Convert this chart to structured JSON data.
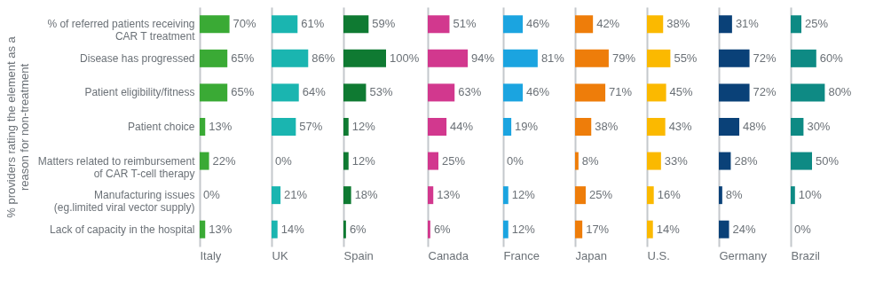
{
  "chart_data": [
    {
      "type": "bar",
      "orientation": "horizontal",
      "ylabel": "% providers rating the element as a reason for non-treatment",
      "xlabel": "Italy",
      "categories": [
        "% of referred patients receiving CAR T treatment",
        "Disease has progressed",
        "Patient eligibility/fitness",
        "Patient choice",
        "Matters related to reimbursement of CAR T-cell therapy",
        "Manufacturing issues (eg.limited viral vector supply)",
        "Lack of capacity in the hospital"
      ],
      "tick_labels": "y",
      "grid": false,
      "color": "#3aaa35",
      "values": [
        70,
        65,
        65,
        13,
        22,
        0,
        13
      ],
      "value_labels": [
        "70%",
        "65%",
        "65%",
        "13%",
        "22%",
        "0%",
        "13%"
      ]
    },
    {
      "type": "bar",
      "orientation": "horizontal",
      "xlabel": "UK",
      "tick_labels": false,
      "grid": false,
      "color": "#1ab5b0",
      "values": [
        61,
        86,
        64,
        57,
        0,
        21,
        14
      ],
      "value_labels": [
        "61%",
        "86%",
        "64%",
        "57%",
        "0%",
        "21%",
        "14%"
      ]
    },
    {
      "type": "bar",
      "orientation": "horizontal",
      "xlabel": "Spain",
      "tick_labels": false,
      "grid": false,
      "color": "#0f7a32",
      "values": [
        59,
        100,
        53,
        12,
        12,
        18,
        6
      ],
      "value_labels": [
        "59%",
        "100%",
        "53%",
        "12%",
        "12%",
        "18%",
        "6%"
      ]
    },
    {
      "type": "bar",
      "orientation": "horizontal",
      "xlabel": "Canada",
      "tick_labels": false,
      "grid": false,
      "color": "#d2388e",
      "values": [
        51,
        94,
        63,
        44,
        25,
        13,
        6
      ],
      "value_labels": [
        "51%",
        "94%",
        "63%",
        "44%",
        "25%",
        "13%",
        "6%"
      ]
    },
    {
      "type": "bar",
      "orientation": "horizontal",
      "xlabel": "France",
      "tick_labels": false,
      "grid": false,
      "color": "#1ba4e0",
      "values": [
        46,
        81,
        46,
        19,
        0,
        12,
        12
      ],
      "value_labels": [
        "46%",
        "81%",
        "46%",
        "19%",
        "0%",
        "12%",
        "12%"
      ]
    },
    {
      "type": "bar",
      "orientation": "horizontal",
      "xlabel": "Japan",
      "tick_labels": false,
      "grid": false,
      "color": "#ee7d0a",
      "values": [
        42,
        79,
        71,
        38,
        8,
        25,
        17
      ],
      "value_labels": [
        "42%",
        "79%",
        "71%",
        "38%",
        "8%",
        "25%",
        "17%"
      ]
    },
    {
      "type": "bar",
      "orientation": "horizontal",
      "xlabel": "U.S.",
      "tick_labels": false,
      "grid": false,
      "color": "#fbb900",
      "values": [
        38,
        55,
        45,
        43,
        33,
        16,
        14
      ],
      "value_labels": [
        "38%",
        "55%",
        "45%",
        "43%",
        "33%",
        "16%",
        "14%"
      ]
    },
    {
      "type": "bar",
      "orientation": "horizontal",
      "xlabel": "Germany",
      "tick_labels": false,
      "grid": false,
      "color": "#0a4178",
      "values": [
        31,
        72,
        72,
        48,
        28,
        8,
        24
      ],
      "value_labels": [
        "31%",
        "72%",
        "72%",
        "48%",
        "28%",
        "8%",
        "24%"
      ]
    },
    {
      "type": "bar",
      "orientation": "horizontal",
      "xlabel": "Brazil",
      "tick_labels": false,
      "grid": false,
      "color": "#0e8a84",
      "values": [
        25,
        60,
        80,
        30,
        50,
        10,
        0
      ],
      "value_labels": [
        "25%",
        "60%",
        "80%",
        "30%",
        "50%",
        "10%",
        "0%"
      ]
    }
  ]
}
